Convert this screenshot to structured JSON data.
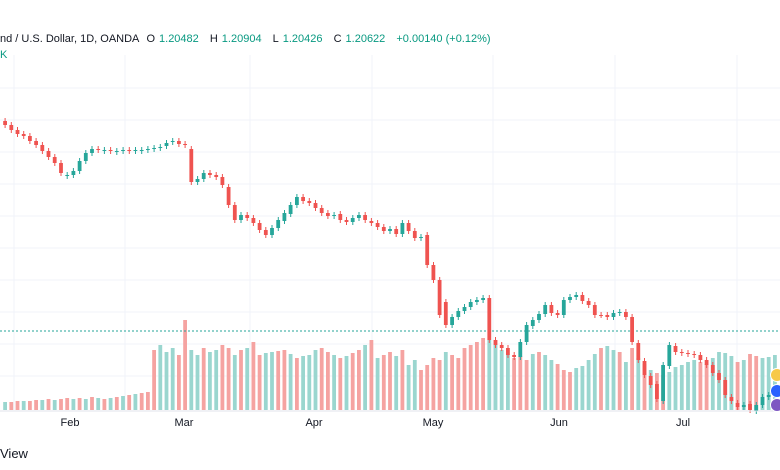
{
  "header": {
    "symbol_text": "nd / U.S. Dollar, 1D, OANDA",
    "open_label": "O",
    "open": "1.20482",
    "high_label": "H",
    "high": "1.20904",
    "low_label": "L",
    "low": "1.20426",
    "close_label": "C",
    "close": "1.20622",
    "change": "+0.00140 (+0.12%)"
  },
  "volume_label": "K",
  "watermark": "View",
  "colors": {
    "up": "#26a69a",
    "down": "#ef5350",
    "vol_up": "#9ad6cf",
    "vol_down": "#f5a3a1",
    "grid": "#f0f3fa",
    "price_line": "#26a69a"
  },
  "chart_data": {
    "type": "candlestick",
    "x_tick_labels": [
      "Feb",
      "Mar",
      "Apr",
      "May",
      "Jun",
      "Jul"
    ],
    "grid": true,
    "series": [
      {
        "kind": "price",
        "closes": [
          70,
          75,
          79,
          81,
          86,
          90,
          96,
          102,
          108,
          118,
          120,
          116,
          106,
          98,
          94,
          95,
          95,
          96,
          96,
          95,
          96,
          95,
          95,
          94,
          93,
          92,
          88,
          86,
          89,
          90,
          127,
          124,
          118,
          120,
          122,
          130,
          150,
          165,
          160,
          163,
          168,
          175,
          180,
          173,
          165,
          158,
          150,
          142,
          146,
          148,
          153,
          158,
          161,
          160,
          165,
          167,
          163,
          160,
          165,
          168,
          172,
          176,
          174,
          179,
          168,
          176,
          183,
          182,
          210,
          225,
          260,
          270,
          262,
          256,
          252,
          247,
          245,
          243,
          285,
          290,
          293,
          300,
          302,
          287,
          270,
          265,
          259,
          250,
          258,
          260,
          245,
          242,
          240,
          246,
          250,
          260,
          260,
          262,
          258,
          257,
          262,
          287,
          305,
          320,
          330,
          344,
          310,
          290,
          297,
          298,
          299,
          300,
          305,
          310,
          318,
          325,
          340,
          346,
          352,
          350,
          355,
          350,
          342,
          340,
          338
        ],
        "opens": [
          66,
          70,
          75,
          79,
          81,
          86,
          90,
          96,
          102,
          108,
          121,
          120,
          116,
          106,
          98,
          94,
          96,
          95,
          97,
          96,
          95,
          96,
          96,
          95,
          94,
          93,
          91,
          87,
          86,
          89,
          94,
          127,
          124,
          118,
          120,
          122,
          132,
          150,
          165,
          160,
          163,
          168,
          175,
          180,
          173,
          166,
          159,
          150,
          142,
          146,
          148,
          153,
          158,
          161,
          159,
          165,
          167,
          163,
          160,
          166,
          168,
          172,
          176,
          174,
          179,
          168,
          176,
          183,
          180,
          210,
          225,
          247,
          270,
          262,
          256,
          252,
          247,
          245,
          243,
          285,
          290,
          293,
          300,
          302,
          287,
          271,
          265,
          259,
          250,
          258,
          260,
          245,
          242,
          240,
          246,
          250,
          260,
          260,
          262,
          258,
          257,
          262,
          288,
          306,
          321,
          329,
          346,
          311,
          291,
          297,
          298,
          299,
          300,
          305,
          310,
          318,
          325,
          342,
          348,
          352,
          349,
          356,
          350,
          342,
          340
        ],
        "note": "values are vertical price positions in chart units (higher number = lower price); price axis labels are not printed in the screenshot"
      },
      {
        "kind": "volume",
        "values": [
          8,
          8,
          9,
          9,
          9,
          10,
          10,
          11,
          10,
          11,
          12,
          11,
          12,
          11,
          13,
          12,
          11,
          12,
          13,
          14,
          15,
          16,
          17,
          18,
          60,
          65,
          58,
          62,
          55,
          90,
          60,
          55,
          62,
          58,
          60,
          65,
          62,
          55,
          60,
          62,
          68,
          55,
          57,
          58,
          59,
          60,
          56,
          52,
          54,
          55,
          60,
          62,
          58,
          55,
          52,
          54,
          57,
          60,
          65,
          70,
          52,
          55,
          58,
          54,
          60,
          45,
          50,
          40,
          45,
          52,
          50,
          58,
          55,
          52,
          62,
          65,
          68,
          72,
          70,
          65,
          60,
          55,
          52,
          54,
          50,
          56,
          58,
          55,
          50,
          46,
          40,
          38,
          42,
          44,
          50,
          56,
          62,
          64,
          60,
          58,
          48,
          62,
          52,
          46,
          40,
          37,
          35,
          38,
          43,
          45,
          48,
          50,
          48,
          46,
          52,
          58,
          57,
          54,
          48,
          50,
          56,
          54,
          52,
          53,
          55
        ],
        "volume_dir": [
          1,
          0,
          0,
          1,
          0,
          0,
          1,
          0,
          1,
          0,
          0,
          1,
          0,
          1,
          0,
          1,
          0,
          1,
          0,
          1,
          0,
          1,
          0,
          0,
          0,
          1,
          1,
          1,
          0,
          0,
          1,
          1,
          0,
          1,
          1,
          0,
          0,
          1,
          0,
          1,
          0,
          0,
          1,
          1,
          0,
          0,
          1,
          0,
          1,
          1,
          1,
          0,
          0,
          1,
          0,
          1,
          0,
          0,
          1,
          0,
          1,
          0,
          0,
          1,
          0,
          1,
          1,
          0,
          0,
          0,
          0,
          1,
          0,
          0,
          0,
          0,
          0,
          0,
          1,
          1,
          1,
          1,
          0,
          0,
          0,
          1,
          0,
          1,
          1,
          0,
          0,
          0,
          1,
          1,
          1,
          1,
          0,
          1,
          1,
          0,
          1,
          0,
          1,
          0,
          1,
          0,
          0,
          1,
          1,
          1,
          1,
          1,
          0,
          0,
          1,
          1,
          1,
          1,
          0,
          1,
          0,
          0,
          1,
          1,
          1
        ]
      }
    ]
  }
}
